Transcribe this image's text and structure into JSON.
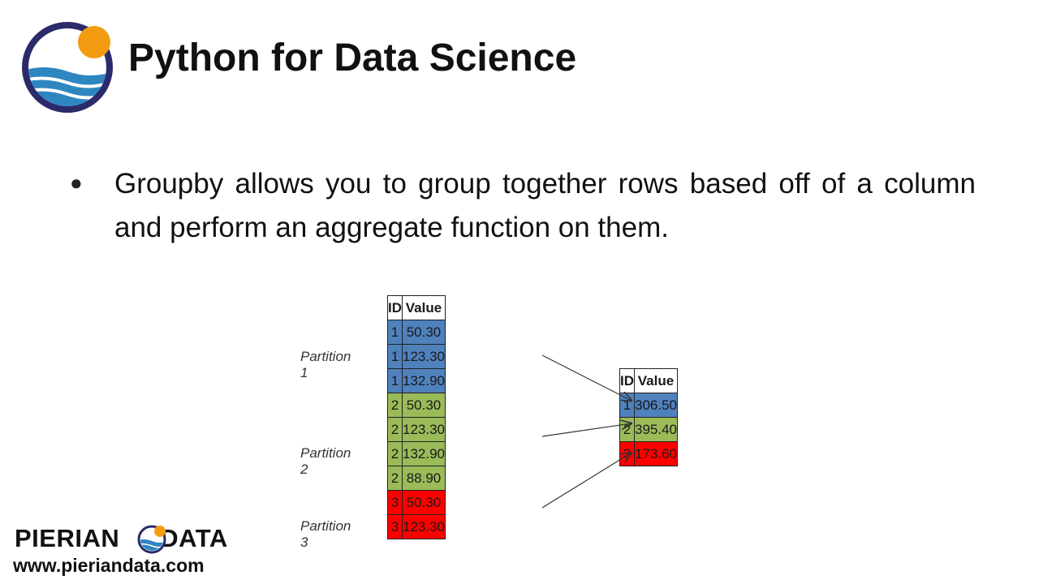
{
  "header": {
    "title": "Python for Data Science",
    "colors": {
      "ring": "#2b2a6b",
      "sun": "#f39c12",
      "wave": "#2e86c1"
    }
  },
  "content": {
    "bullet": "Groupby allows you to group together rows based off of a column and perform an aggregate function on them."
  },
  "diagram": {
    "input_table": {
      "headers": [
        "ID",
        "Value"
      ],
      "rows": [
        {
          "id": "1",
          "value": "50.30",
          "group": "p1"
        },
        {
          "id": "1",
          "value": "123.30",
          "group": "p1"
        },
        {
          "id": "1",
          "value": "132.90",
          "group": "p1"
        },
        {
          "id": "2",
          "value": "50.30",
          "group": "p2"
        },
        {
          "id": "2",
          "value": "123.30",
          "group": "p2"
        },
        {
          "id": "2",
          "value": "132.90",
          "group": "p2"
        },
        {
          "id": "2",
          "value": "88.90",
          "group": "p2"
        },
        {
          "id": "3",
          "value": "50.30",
          "group": "p3"
        },
        {
          "id": "3",
          "value": "123.30",
          "group": "p3"
        }
      ]
    },
    "partition_labels": [
      "Partition 1",
      "Partition 2",
      "Partition 3"
    ],
    "output_table": {
      "headers": [
        "ID",
        "Value"
      ],
      "rows": [
        {
          "id": "1",
          "value": "306.50",
          "group": "p1"
        },
        {
          "id": "2",
          "value": "395.40",
          "group": "p2"
        },
        {
          "id": "3",
          "value": "173.60",
          "group": "p3"
        }
      ]
    },
    "colors": {
      "p1": "#4f81bd",
      "p2": "#9bbb59",
      "p3": "#ff0000"
    }
  },
  "footer": {
    "brand_left": "PIERIAN",
    "brand_right": "DATA",
    "url": "www.pieriandata.com"
  }
}
